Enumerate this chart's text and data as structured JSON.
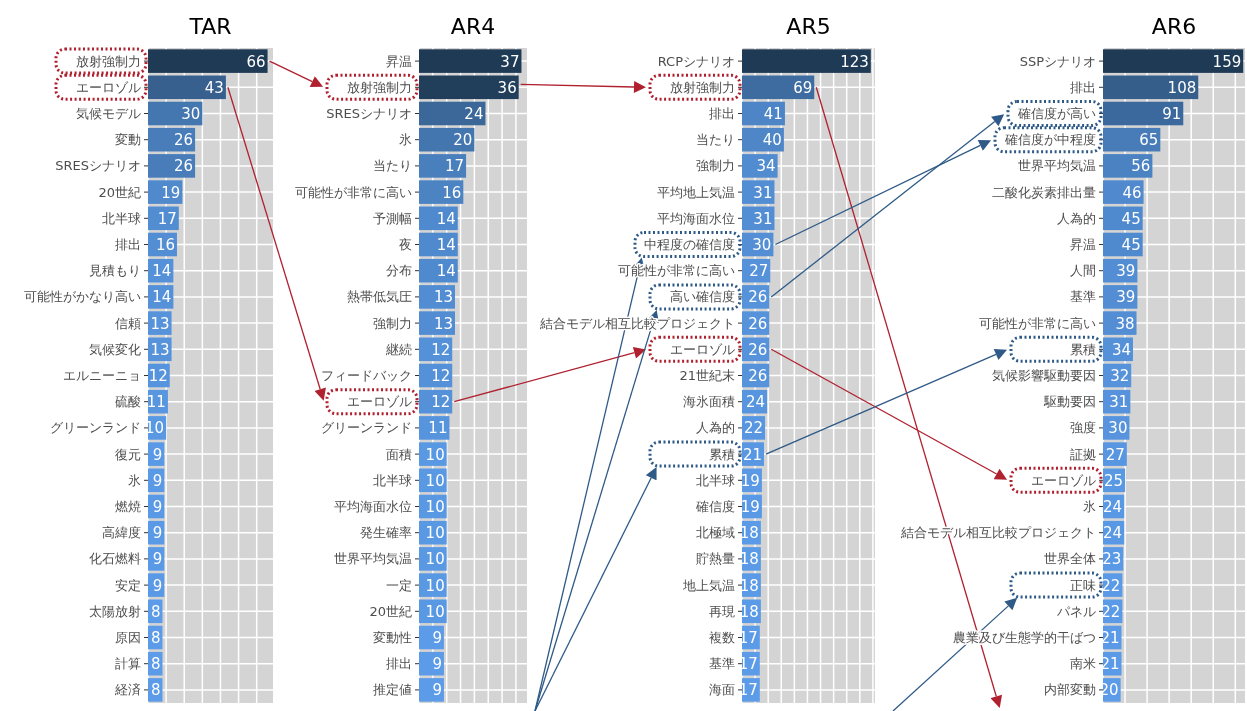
{
  "chart_data": [
    {
      "type": "bar",
      "orientation": "horizontal",
      "title": "TAR",
      "categories": [
        "放射強制力",
        "エーロゾル",
        "気候モデル",
        "変動",
        "SRESシナリオ",
        "20世紀",
        "北半球",
        "排出",
        "見積もり",
        "可能性がかなり高い",
        "信頼",
        "気候変化",
        "エルニーニョ",
        "硫酸",
        "グリーンランド",
        "復元",
        "氷",
        "燃焼",
        "高緯度",
        "化石燃料",
        "安定",
        "太陽放射",
        "原因",
        "計算",
        "経済"
      ],
      "values": [
        66,
        43,
        30,
        26,
        26,
        19,
        17,
        16,
        14,
        14,
        13,
        13,
        12,
        11,
        10,
        9,
        9,
        9,
        9,
        9,
        9,
        8,
        8,
        8,
        8
      ],
      "colors": [
        "#1f3a55",
        "#37608f",
        "#4476b0",
        "#487dba",
        "#487dba",
        "#5089cc",
        "#528cd1",
        "#538ed4",
        "#5591d9",
        "#5591d9",
        "#5693db",
        "#5693db",
        "#5794de",
        "#5896e0",
        "#5998e3",
        "#5a99e5",
        "#5a99e5",
        "#5a99e5",
        "#5a99e5",
        "#5a99e5",
        "#5a99e5",
        "#5b9be8",
        "#5b9be8",
        "#5b9be8",
        "#5b9be8"
      ],
      "xlim": [
        0,
        69
      ],
      "xticks": [
        {
          "value": 0,
          "label": null
        },
        {
          "value": 10,
          "label": null
        },
        {
          "value": 20,
          "label": null
        },
        {
          "value": 30,
          "label": null
        },
        {
          "value": 40,
          "label": null
        },
        {
          "value": 50,
          "label": null
        },
        {
          "value": 60,
          "label": null
        }
      ],
      "grid": true,
      "data_labels": true,
      "tick_labels": "y"
    },
    {
      "type": "bar",
      "orientation": "horizontal",
      "title": "AR4",
      "categories": [
        "昇温",
        "放射強制力",
        "SRESシナリオ",
        "氷",
        "当たり",
        "可能性が非常に高い",
        "予測幅",
        "夜",
        "分布",
        "熱帯低気圧",
        "強制力",
        "継続",
        "フィードバック",
        "エーロゾル",
        "グリーンランド",
        "面積",
        "北半球",
        "平均海面水位",
        "発生確率",
        "世界平均気温",
        "一定",
        "20世紀",
        "変動性",
        "排出",
        "推定値"
      ],
      "values": [
        37,
        36,
        24,
        20,
        17,
        16,
        14,
        14,
        14,
        13,
        13,
        12,
        12,
        12,
        11,
        10,
        10,
        10,
        10,
        10,
        10,
        10,
        9,
        9,
        9
      ],
      "colors": [
        "#1f3a55",
        "#213e5a",
        "#3b6799",
        "#4375ae",
        "#4a7fbe",
        "#4c83c3",
        "#508ace",
        "#508ace",
        "#508ace",
        "#528dd3",
        "#528dd3",
        "#5591d8",
        "#5591d8",
        "#5591d8",
        "#5794de",
        "#5998e3",
        "#5998e3",
        "#5998e3",
        "#5998e3",
        "#5998e3",
        "#5998e3",
        "#5998e3",
        "#5b9be8",
        "#5b9be8",
        "#5b9be8"
      ],
      "xlim": [
        0,
        39
      ],
      "xticks": [
        {
          "value": 0,
          "label": null
        },
        {
          "value": 5,
          "label": null
        },
        {
          "value": 10,
          "label": null
        },
        {
          "value": 15,
          "label": null
        },
        {
          "value": 20,
          "label": null
        },
        {
          "value": 25,
          "label": null
        },
        {
          "value": 30,
          "label": null
        },
        {
          "value": 35,
          "label": null
        }
      ],
      "grid": true,
      "data_labels": true,
      "tick_labels": "y"
    },
    {
      "type": "bar",
      "orientation": "horizontal",
      "title": "AR5",
      "categories": [
        "RCPシナリオ",
        "放射強制力",
        "排出",
        "当たり",
        "強制力",
        "平均地上気温",
        "平均海面水位",
        "中程度の確信度",
        "可能性が非常に高い",
        "高い確信度",
        "結合モデル相互比較プロジェクト",
        "エーロゾル",
        "21世紀末",
        "海氷面積",
        "人為的",
        "累積",
        "北半球",
        "確信度",
        "北極域",
        "貯熱量",
        "地上気温",
        "再現",
        "複数",
        "基準",
        "海面"
      ],
      "values": [
        123,
        69,
        41,
        40,
        34,
        31,
        31,
        30,
        27,
        26,
        26,
        26,
        26,
        24,
        22,
        21,
        19,
        19,
        18,
        18,
        18,
        18,
        17,
        17,
        17
      ],
      "colors": [
        "#1f3a55",
        "#3e6ba0",
        "#4d85c7",
        "#4e86c8",
        "#518bd0",
        "#538ed5",
        "#538ed5",
        "#548fd6",
        "#5592da",
        "#5693db",
        "#5693db",
        "#5693db",
        "#5693db",
        "#5795de",
        "#5896e1",
        "#5997e2",
        "#5a99e5",
        "#5a99e5",
        "#5a9ae7",
        "#5a9ae7",
        "#5a9ae7",
        "#5a9ae7",
        "#5b9be8",
        "#5b9be8",
        "#5b9be8"
      ],
      "xlim": [
        0,
        127
      ],
      "xticks": [
        {
          "value": 0,
          "label": null
        },
        {
          "value": 12.5,
          "label": null
        },
        {
          "value": 25,
          "label": null
        },
        {
          "value": 37.5,
          "label": null
        },
        {
          "value": 50,
          "label": null
        },
        {
          "value": 62.5,
          "label": null
        },
        {
          "value": 75,
          "label": null
        },
        {
          "value": 87.5,
          "label": null
        },
        {
          "value": 100,
          "label": null
        },
        {
          "value": 112.5,
          "label": null
        },
        {
          "value": 125,
          "label": null
        }
      ],
      "grid": true,
      "data_labels": true,
      "tick_labels": "y"
    },
    {
      "type": "bar",
      "orientation": "horizontal",
      "title": "AR6",
      "categories": [
        "SSPシナリオ",
        "排出",
        "確信度が高い",
        "確信度が中程度",
        "世界平均気温",
        "二酸化炭素排出量",
        "人為的",
        "昇温",
        "人間",
        "基準",
        "可能性が非常に高い",
        "累積",
        "気候影響駆動要因",
        "駆動要因",
        "強度",
        "証拠",
        "エーロゾル",
        "氷",
        "結合モデル相互比較プロジェクト",
        "世界全体",
        "正味",
        "パネル",
        "農業及び生態学的干ばつ",
        "南米",
        "内部変動"
      ],
      "values": [
        159,
        108,
        91,
        65,
        56,
        46,
        45,
        45,
        39,
        39,
        38,
        34,
        32,
        31,
        30,
        27,
        25,
        24,
        24,
        23,
        22,
        22,
        21,
        21,
        20
      ],
      "colors": [
        "#1f3a55",
        "#355e8b",
        "#3c699d",
        "#487cb8",
        "#4b82c2",
        "#5089cd",
        "#508ace",
        "#508ace",
        "#538ed4",
        "#538ed4",
        "#538ed5",
        "#5591d9",
        "#5693db",
        "#5693dc",
        "#5794dd",
        "#5896e1",
        "#5998e3",
        "#5998e4",
        "#5998e4",
        "#5a99e5",
        "#5a9ae6",
        "#5a9ae6",
        "#5b9ae7",
        "#5b9ae7",
        "#5b9be8"
      ],
      "xlim": [
        0,
        161
      ],
      "xticks": [
        {
          "value": 0,
          "label": null
        },
        {
          "value": 25,
          "label": null
        },
        {
          "value": 50,
          "label": null
        },
        {
          "value": 75,
          "label": null
        },
        {
          "value": 100,
          "label": null
        },
        {
          "value": 125,
          "label": null
        },
        {
          "value": 150,
          "label": null
        }
      ],
      "grid": true,
      "data_labels": true,
      "tick_labels": "y"
    }
  ]
}
